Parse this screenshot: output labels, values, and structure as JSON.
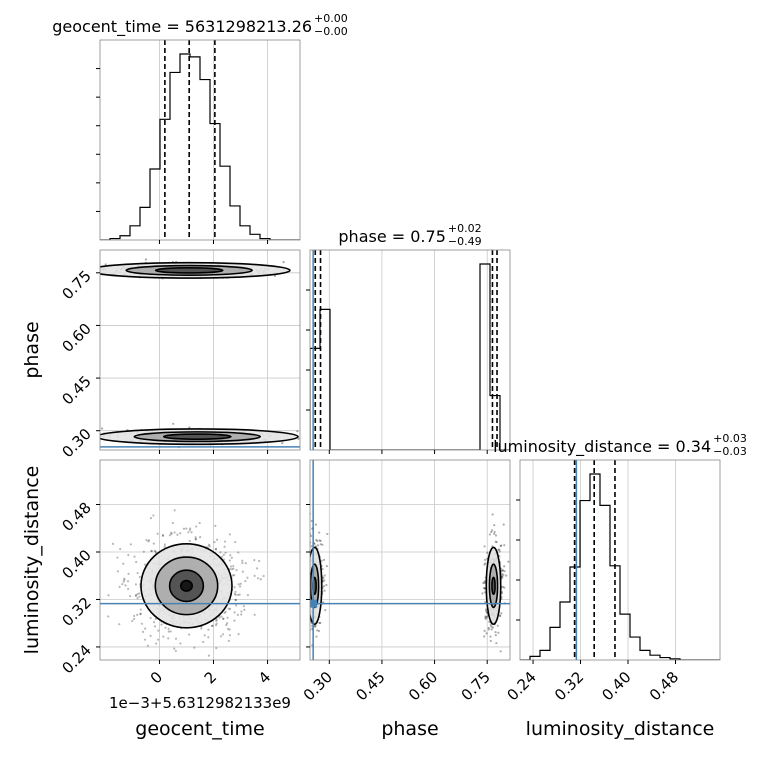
{
  "chart_data": {
    "type": "corner",
    "truth_color": "#4682b4",
    "parameters": [
      {
        "name": "geocent_time",
        "title": {
          "prefix": "geocent_time = 5631298213.26",
          "upper": "+0.00",
          "lower": "−0.00"
        },
        "axis_label": "geocent_time",
        "offset_label": "1e−3+5.6312982133e9",
        "range": [
          -2.2,
          5.2
        ],
        "ticks": [
          0,
          2,
          4
        ],
        "tick_labels": [
          "0",
          "2",
          "4"
        ],
        "quantiles": [
          0.2,
          1.1,
          2.05
        ],
        "hist": {
          "edges": [
            -2.2,
            -1.83,
            -1.46,
            -1.09,
            -0.72,
            -0.35,
            0.02,
            0.39,
            0.76,
            1.13,
            1.5,
            1.87,
            2.24,
            2.61,
            2.98,
            3.35,
            3.72,
            4.09,
            4.46,
            4.83,
            5.2
          ],
          "counts": [
            0,
            1,
            3,
            10,
            23,
            50,
            85,
            118,
            131,
            129,
            113,
            82,
            52,
            24,
            10,
            4,
            1,
            0,
            0,
            0
          ]
        }
      },
      {
        "name": "phase",
        "title": {
          "prefix": "phase = 0.75",
          "upper": "+0.02",
          "lower": "−0.49"
        },
        "axis_label": "phase",
        "range": [
          0.245,
          0.815
        ],
        "ticks": [
          0.3,
          0.45,
          0.6,
          0.75
        ],
        "tick_labels": [
          "0.30",
          "0.45",
          "0.60",
          "0.75"
        ],
        "quantiles": [
          0.26,
          0.275,
          0.765,
          0.778
        ],
        "truth": 0.254,
        "hist": {
          "edges": [
            0.245,
            0.2735,
            0.302,
            0.3305,
            0.359,
            0.3875,
            0.416,
            0.4445,
            0.473,
            0.5015,
            0.53,
            0.5585,
            0.587,
            0.6155,
            0.644,
            0.6725,
            0.701,
            0.7295,
            0.758,
            0.7865,
            0.815
          ],
          "counts": [
            112,
            155,
            0,
            0,
            0,
            0,
            0,
            0,
            0,
            0,
            0,
            0,
            0,
            0,
            0,
            0,
            0,
            205,
            60,
            0
          ]
        }
      },
      {
        "name": "luminosity_distance",
        "title": {
          "prefix": "luminosity_distance = 0.34",
          "upper": "+0.03",
          "lower": "−0.03"
        },
        "axis_label": "luminosity_distance",
        "range": [
          0.218,
          0.555
        ],
        "ticks": [
          0.24,
          0.32,
          0.4,
          0.48
        ],
        "tick_labels": [
          "0.24",
          "0.32",
          "0.40",
          "0.48"
        ],
        "quantiles": [
          0.31,
          0.343,
          0.378
        ],
        "truth": 0.313,
        "hist": {
          "edges": [
            0.218,
            0.23485,
            0.2517,
            0.26855,
            0.2854,
            0.30225,
            0.3191,
            0.33595,
            0.3528,
            0.36965,
            0.3865,
            0.40335,
            0.4202,
            0.43705,
            0.4539,
            0.47075,
            0.4876,
            0.50445,
            0.5213,
            0.53815,
            0.555
          ],
          "counts": [
            0,
            3,
            8,
            27,
            48,
            77,
            132,
            154,
            128,
            78,
            38,
            19,
            8,
            4,
            2,
            1,
            0,
            0,
            0,
            0
          ]
        }
      }
    ],
    "pairs": [
      {
        "x": "geocent_time",
        "y": "phase",
        "modes": [
          {
            "x": 1.1,
            "y": 0.757
          },
          {
            "x": 1.4,
            "y": 0.283
          }
        ]
      },
      {
        "x": "geocent_time",
        "y": "luminosity_distance",
        "modes": [
          {
            "x": 1.0,
            "y": 0.343
          }
        ]
      },
      {
        "x": "phase",
        "y": "luminosity_distance",
        "modes": [
          {
            "x": 0.258,
            "y": 0.343
          },
          {
            "x": 0.768,
            "y": 0.343
          }
        ]
      }
    ]
  }
}
